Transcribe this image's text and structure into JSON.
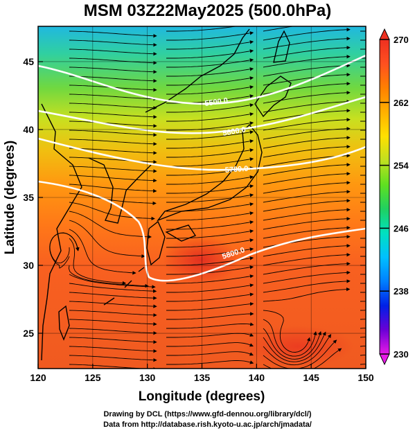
{
  "title": "MSM 03Z22May2025 (500.0hPa)",
  "credits": {
    "line1": "Drawing by DCL (https://www.gfd-dennou.org/library/dcl/)",
    "line2": "Data from http://database.rish.kyoto-u.ac.jp/arch/jmadata/"
  },
  "map": {
    "type": "temperature-streamline-map",
    "x_label": "Longitude (degrees)",
    "y_label": "Latitude  (degrees)",
    "lon_range": [
      120,
      150
    ],
    "lat_range": [
      22.4,
      47.6
    ],
    "x_ticks": [
      "120",
      "125",
      "130",
      "135",
      "140",
      "145",
      "150"
    ],
    "y_ticks": [
      "25",
      "30",
      "35",
      "40",
      "45"
    ],
    "contour_labels": [
      "5500.0",
      "5600.0",
      "5700.0",
      "5800.0"
    ],
    "colorbar": {
      "range": [
        230,
        270
      ],
      "tick_labels": [
        "270",
        "262",
        "254",
        "246",
        "238",
        "230"
      ],
      "colors": [
        "#e61ae6",
        "#6a00d6",
        "#0020e6",
        "#0080ff",
        "#00c0ff",
        "#00e0c0",
        "#20d060",
        "#60e020",
        "#c0e020",
        "#ffe000",
        "#ffb000",
        "#ff8000",
        "#ff5020",
        "#ee3020"
      ]
    }
  }
}
